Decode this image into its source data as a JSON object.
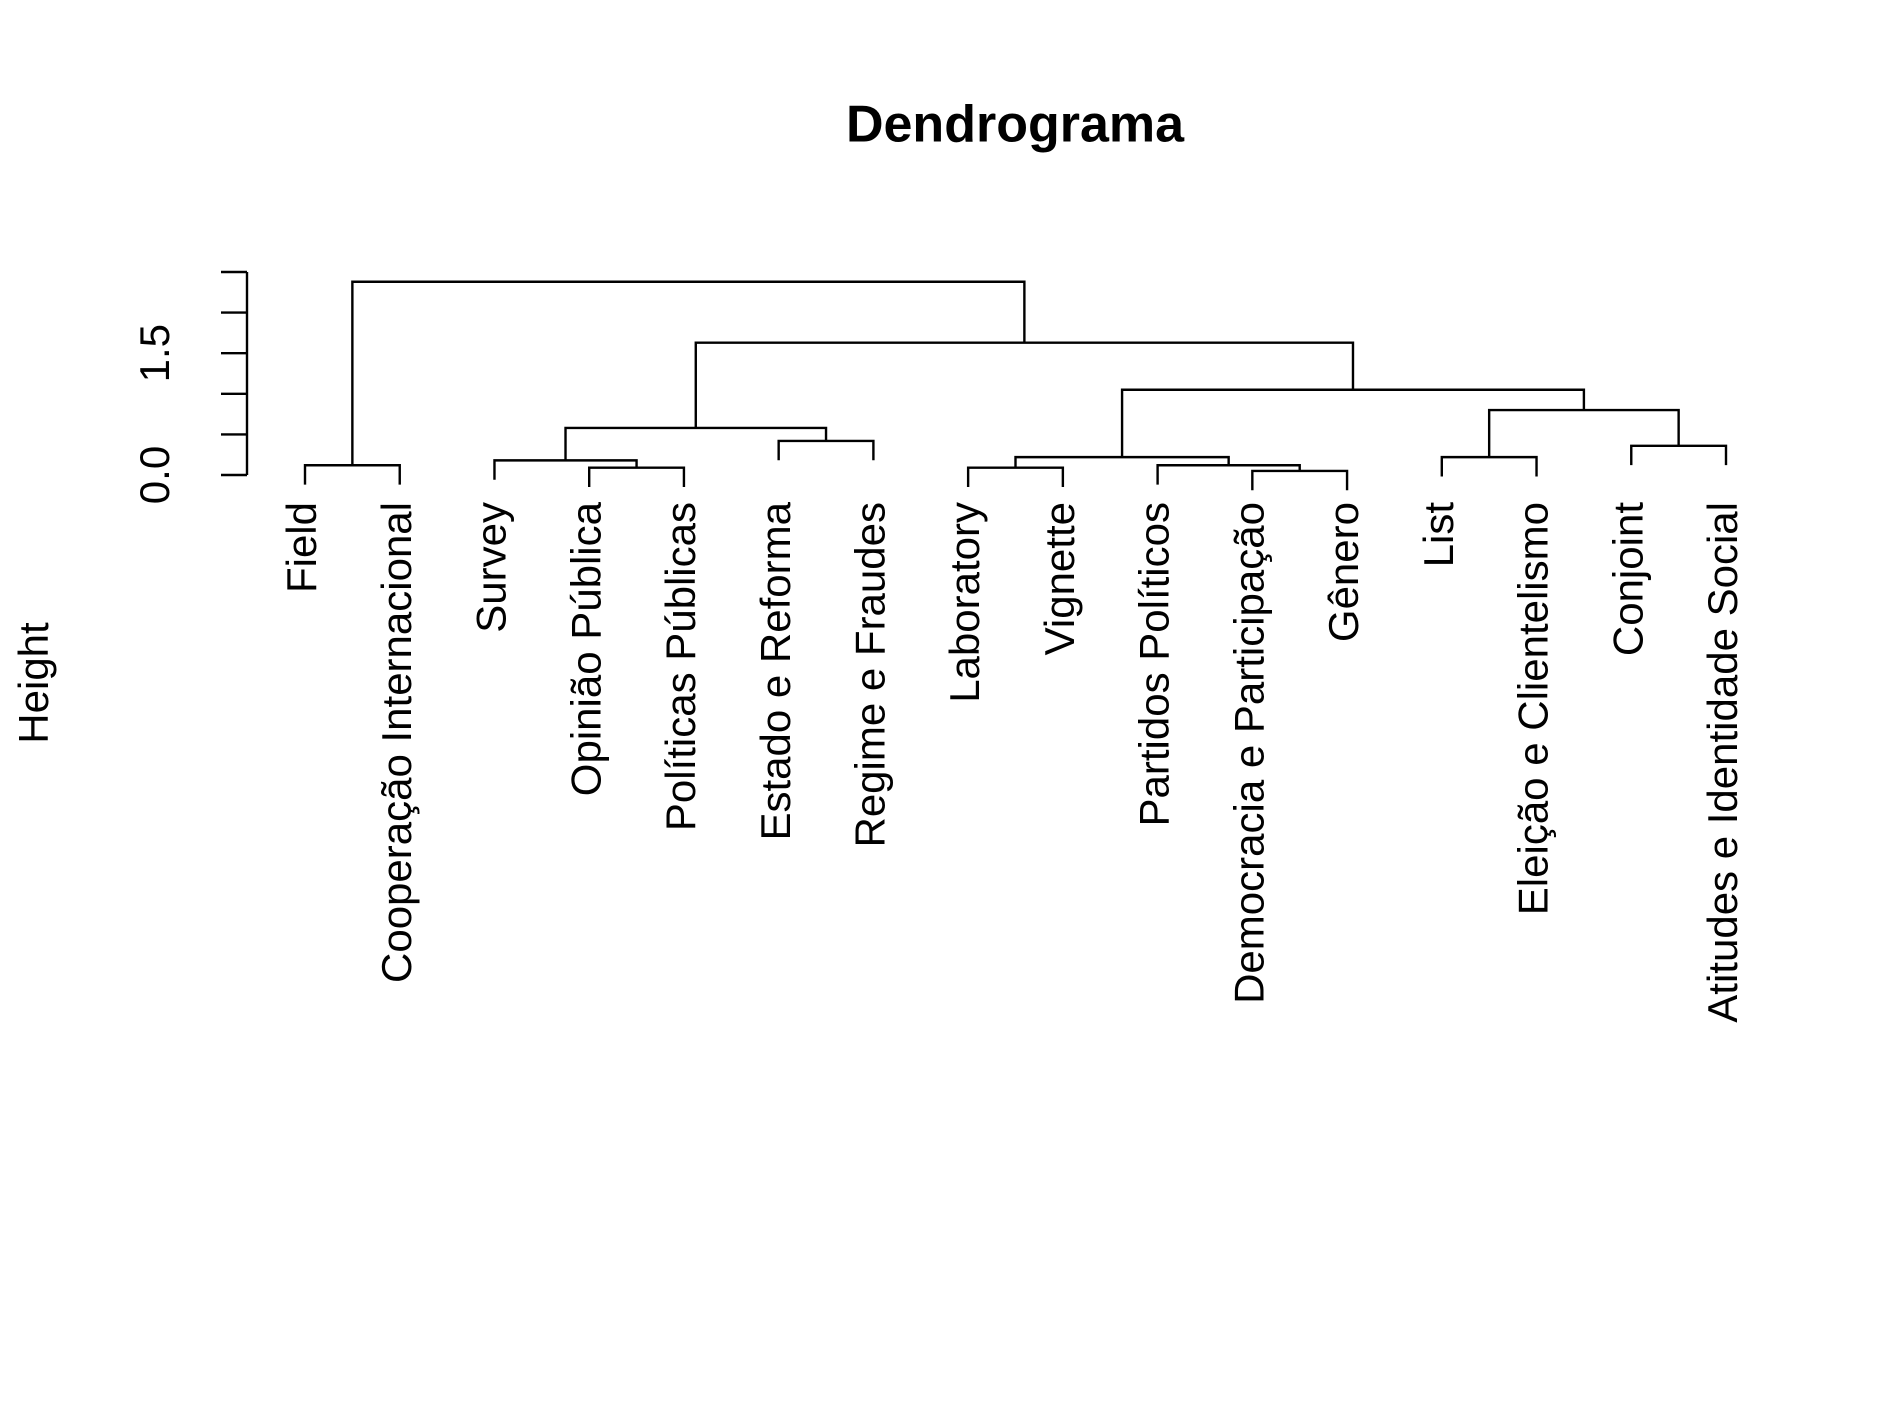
{
  "chart_data": {
    "type": "dendrogram",
    "title": "Dendrograma",
    "ylabel": "Height",
    "labels": [
      "Field",
      "Cooperação Internacional",
      "Survey",
      "Opinião Pública",
      "Políticas Públicas",
      "Estado e Reforma",
      "Regime e Fraudes",
      "Laboratory",
      "Vignette",
      "Partidos Políticos",
      "Democracia e Participação",
      "Gênero",
      "List",
      "Eleição e Clientelismo",
      "Conjoint",
      "Atitudes e Identidade Social"
    ],
    "merge": [
      [
        -11,
        -12
      ],
      [
        -4,
        -5
      ],
      [
        -8,
        -9
      ],
      [
        -1,
        -2
      ],
      [
        -10,
        1
      ],
      [
        -3,
        2
      ],
      [
        3,
        5
      ],
      [
        -13,
        -14
      ],
      [
        -15,
        -16
      ],
      [
        -6,
        -7
      ],
      [
        6,
        10
      ],
      [
        8,
        9
      ],
      [
        7,
        12
      ],
      [
        11,
        13
      ],
      [
        4,
        14
      ]
    ],
    "height": [
      0.05,
      0.09,
      0.09,
      0.12,
      0.12,
      0.18,
      0.22,
      0.22,
      0.36,
      0.42,
      0.58,
      0.8,
      1.05,
      1.63,
      2.38
    ],
    "ylim": [
      0,
      2.5
    ],
    "yticks": [
      {
        "value": 0,
        "label": "0.0"
      },
      {
        "value": 0.5,
        "label": null
      },
      {
        "value": 1.0,
        "label": null
      },
      1.5,
      {
        "value": 2.0,
        "label": null
      },
      {
        "value": 2.5,
        "label": null
      }
    ],
    "color": "#000000"
  }
}
